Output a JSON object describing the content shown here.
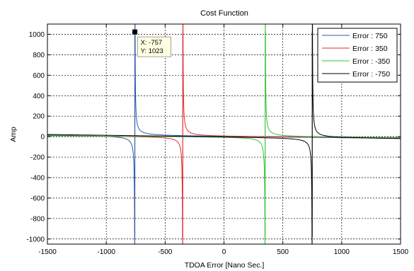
{
  "chart_data": {
    "type": "line",
    "title": "Cost Function",
    "xlabel": "TDOA Error [Nano Sec.]",
    "ylabel": "Amp",
    "xlim": [
      -1500,
      1500
    ],
    "ylim": [
      -1050,
      1100
    ],
    "xticks": [
      -1500,
      -1000,
      -500,
      0,
      500,
      1000,
      1500
    ],
    "yticks": [
      -1000,
      -800,
      -600,
      -400,
      -200,
      0,
      200,
      400,
      600,
      800,
      1000
    ],
    "grid": true,
    "legend_position": "top-right",
    "series": [
      {
        "name": "Error : 750",
        "color": "#2f5aa8",
        "pole": -757,
        "k": 2.4,
        "peak": 1023,
        "trough": -970,
        "drift": [
          18,
          -18
        ]
      },
      {
        "name": "Error : 350",
        "color": "#e2292e",
        "pole": -350,
        "k": 2.4,
        "peak": 1023,
        "trough": -980,
        "drift": [
          10,
          -10
        ]
      },
      {
        "name": "Error : -350",
        "color": "#3cc13c",
        "pole": 350,
        "k": 2.4,
        "peak": 1023,
        "trough": -980,
        "drift": [
          10,
          -10
        ]
      },
      {
        "name": "Error : -750",
        "color": "#000000",
        "pole": 750,
        "k": 2.4,
        "peak": 1023,
        "trough": -980,
        "drift": [
          22,
          -22
        ]
      }
    ],
    "annotation": {
      "x_text": "X: -757",
      "y_text": "Y: 1023",
      "x": -757,
      "y": 1023
    }
  }
}
